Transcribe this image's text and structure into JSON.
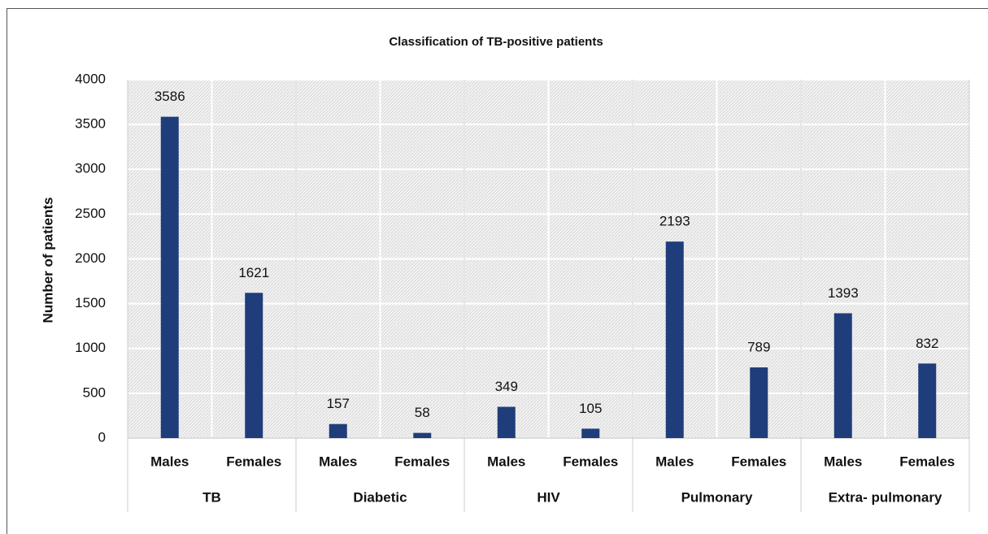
{
  "chart_data": {
    "type": "bar",
    "title": "Classification of TB-positive patients",
    "y_label": "Number of patients",
    "categories": [
      "Males",
      "Females",
      "Males",
      "Females",
      "Males",
      "Females",
      "Males",
      "Females",
      "Males",
      "Females"
    ],
    "groups": [
      "TB",
      "Diabetic",
      "HIV",
      "Pulmonary",
      "Extra- pulmonary"
    ],
    "values": [
      3586,
      1621,
      157,
      58,
      349,
      105,
      2193,
      789,
      1393,
      832
    ],
    "color": "#1f3d7a",
    "ylim": [
      0,
      4000
    ],
    "yticks": [
      0,
      500,
      1000,
      1500,
      2000,
      2500,
      3000,
      3500,
      4000
    ],
    "grid": true
  }
}
